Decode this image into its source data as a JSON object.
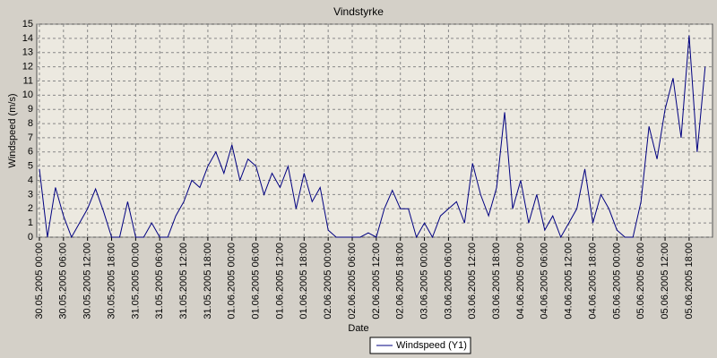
{
  "chart_data": {
    "type": "line",
    "title": "Vindstyrke",
    "x_label": "Date",
    "y_label": "Windspeed (m/s)",
    "x": [
      "30.05.2005 00:00",
      "30.05.2005 02:00",
      "30.05.2005 04:00",
      "30.05.2005 06:00",
      "30.05.2005 08:00",
      "30.05.2005 10:00",
      "30.05.2005 12:00",
      "30.05.2005 14:00",
      "30.05.2005 16:00",
      "30.05.2005 18:00",
      "30.05.2005 20:00",
      "30.05.2005 22:00",
      "31.05.2005 00:00",
      "31.05.2005 02:00",
      "31.05.2005 04:00",
      "31.05.2005 06:00",
      "31.05.2005 08:00",
      "31.05.2005 10:00",
      "31.05.2005 12:00",
      "31.05.2005 14:00",
      "31.05.2005 16:00",
      "31.05.2005 18:00",
      "31.05.2005 20:00",
      "31.05.2005 22:00",
      "01.06.2005 00:00",
      "01.06.2005 02:00",
      "01.06.2005 04:00",
      "01.06.2005 06:00",
      "01.06.2005 08:00",
      "01.06.2005 10:00",
      "01.06.2005 12:00",
      "01.06.2005 14:00",
      "01.06.2005 16:00",
      "01.06.2005 18:00",
      "01.06.2005 20:00",
      "01.06.2005 22:00",
      "02.06.2005 00:00",
      "02.06.2005 02:00",
      "02.06.2005 04:00",
      "02.06.2005 06:00",
      "02.06.2005 08:00",
      "02.06.2005 10:00",
      "02.06.2005 12:00",
      "02.06.2005 14:00",
      "02.06.2005 16:00",
      "02.06.2005 18:00",
      "02.06.2005 20:00",
      "02.06.2005 22:00",
      "03.06.2005 00:00",
      "03.06.2005 02:00",
      "03.06.2005 04:00",
      "03.06.2005 06:00",
      "03.06.2005 08:00",
      "03.06.2005 10:00",
      "03.06.2005 12:00",
      "03.06.2005 14:00",
      "03.06.2005 16:00",
      "03.06.2005 18:00",
      "03.06.2005 20:00",
      "03.06.2005 22:00",
      "04.06.2005 00:00",
      "04.06.2005 02:00",
      "04.06.2005 04:00",
      "04.06.2005 06:00",
      "04.06.2005 08:00",
      "04.06.2005 10:00",
      "04.06.2005 12:00",
      "04.06.2005 14:00",
      "04.06.2005 16:00",
      "04.06.2005 18:00",
      "04.06.2005 20:00",
      "04.06.2005 22:00",
      "05.06.2005 00:00",
      "05.06.2005 02:00",
      "05.06.2005 04:00",
      "05.06.2005 06:00",
      "05.06.2005 08:00",
      "05.06.2005 10:00",
      "05.06.2005 12:00",
      "05.06.2005 14:00",
      "05.06.2005 16:00",
      "05.06.2005 18:00",
      "05.06.2005 20:00",
      "05.06.2005 22:00"
    ],
    "series": [
      {
        "name": "Windspeed (Y1)",
        "color": "#000080",
        "values": [
          4.8,
          0,
          3.5,
          1.5,
          0,
          1,
          2,
          3.4,
          1.8,
          0,
          0,
          2.5,
          0,
          0,
          1,
          0,
          0,
          1.5,
          2.5,
          4,
          3.5,
          5,
          6,
          4.5,
          6.5,
          4,
          5.5,
          5,
          3,
          4.5,
          3.5,
          5,
          2,
          4.5,
          2.5,
          3.5,
          0.5,
          0,
          0,
          0,
          0,
          0.3,
          0,
          2,
          3.3,
          2,
          2,
          0,
          1,
          0,
          1.5,
          2,
          2.5,
          1,
          5.2,
          3,
          1.5,
          3.5,
          8.8,
          2,
          4,
          1,
          3,
          0.5,
          1.5,
          0,
          1,
          2,
          4.8,
          1,
          3,
          2,
          0.5,
          0,
          0,
          2.5,
          7.8,
          5.5,
          9,
          11.2,
          7,
          14.2,
          6,
          12
        ]
      }
    ],
    "xlim": [
      "29.05.2005 23:20",
      "05.06.2005 23:50"
    ],
    "xticks": [
      "30.05.2005 00:00",
      "30.05.2005 06:00",
      "30.05.2005 12:00",
      "30.05.2005 18:00",
      "31.05.2005 00:00",
      "31.05.2005 06:00",
      "31.05.2005 12:00",
      "31.05.2005 18:00",
      "01.06.2005 00:00",
      "01.06.2005 06:00",
      "01.06.2005 12:00",
      "01.06.2005 18:00",
      "02.06.2005 00:00",
      "02.06.2005 06:00",
      "02.06.2005 12:00",
      "02.06.2005 18:00",
      "03.06.2005 00:00",
      "03.06.2005 06:00",
      "03.06.2005 12:00",
      "03.06.2005 18:00",
      "04.06.2005 00:00",
      "04.06.2005 06:00",
      "04.06.2005 12:00",
      "04.06.2005 18:00",
      "05.06.2005 00:00",
      "05.06.2005 06:00",
      "05.06.2005 12:00",
      "05.06.2005 18:00"
    ],
    "ylim": [
      0,
      15
    ],
    "yticks": [
      0,
      1,
      2,
      3,
      4,
      5,
      6,
      7,
      8,
      9,
      10,
      11,
      12,
      13,
      14,
      15
    ],
    "grid": true
  }
}
